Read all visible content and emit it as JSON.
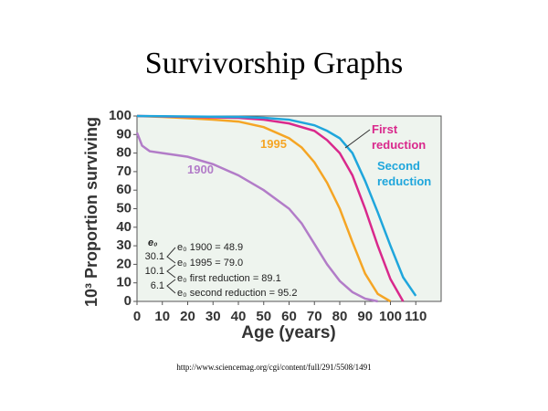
{
  "chart_data": {
    "type": "line",
    "title": "Survivorship Graphs",
    "x_label": "Age (years)",
    "y_label": "10³ Proportion surviving",
    "source": "http://www.sciencemag.org/cgi/content/full/291/5508/1491",
    "xlim": [
      0,
      120
    ],
    "xticks": [
      0,
      10,
      20,
      30,
      40,
      50,
      60,
      70,
      80,
      90,
      100,
      110
    ],
    "ylim": [
      0,
      100
    ],
    "yticks": [
      0,
      10,
      20,
      30,
      40,
      50,
      60,
      70,
      80,
      90,
      100
    ],
    "series": [
      {
        "name": "1900",
        "color": "#b27cc8",
        "x": [
          0,
          2,
          5,
          10,
          20,
          30,
          40,
          50,
          60,
          65,
          70,
          75,
          80,
          85,
          90,
          95
        ],
        "values": [
          91,
          84,
          81,
          80,
          78,
          74,
          68,
          60,
          50,
          42,
          31,
          20,
          11,
          5,
          1.5,
          0
        ]
      },
      {
        "name": "1995",
        "color": "#f5a524",
        "x": [
          0,
          10,
          20,
          30,
          40,
          50,
          60,
          65,
          70,
          75,
          80,
          85,
          90,
          95,
          100
        ],
        "values": [
          100,
          99.5,
          98.8,
          98,
          97,
          94,
          88,
          83,
          75,
          64,
          50,
          32,
          15,
          4,
          0
        ]
      },
      {
        "name": "First reduction",
        "color": "#d9288c",
        "x": [
          0,
          20,
          40,
          50,
          60,
          70,
          75,
          80,
          85,
          90,
          95,
          100,
          105
        ],
        "values": [
          100,
          99.5,
          99,
          98,
          96,
          92,
          87,
          80,
          68,
          50,
          30,
          12,
          0
        ]
      },
      {
        "name": "Second reduction",
        "color": "#1fa6dc",
        "x": [
          0,
          40,
          50,
          60,
          70,
          75,
          80,
          85,
          90,
          95,
          100,
          105,
          110
        ],
        "values": [
          100,
          99.5,
          99,
          98,
          95,
          92,
          88,
          80,
          65,
          48,
          30,
          13,
          3
        ]
      }
    ],
    "annotations": [
      "e₀",
      "30.1",
      "10.1",
      "6.1",
      "e₀ 1900 = 48.9",
      "e₀ 1995 = 79.0",
      "e₀ first reduction = 89.1",
      "e₀ second reduction = 95.2"
    ]
  }
}
